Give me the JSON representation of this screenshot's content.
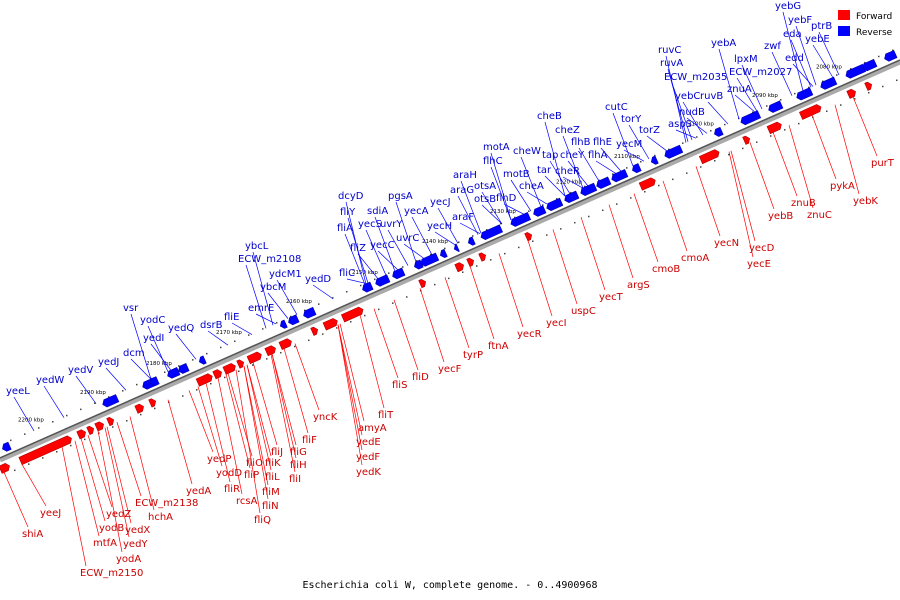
{
  "caption": "Escherichia coli W, complete genome. - 0..4900968",
  "legend": [
    {
      "label": "Forward",
      "color": "#ff0000"
    },
    {
      "label": "Reverse",
      "color": "#0000ff"
    }
  ],
  "ruler_ticks": [
    "2200 kbp",
    "2190 kbp",
    "2180 kbp",
    "2170 kbp",
    "2160 kbp",
    "2150 kbp",
    "2140 kbp",
    "2130 kbp",
    "2120 kbp",
    "2110 kbp",
    "2100 kbp",
    "2090 kbp",
    "2080 kbp"
  ],
  "reverse_genes": [
    "yeeL",
    "yedW",
    "yedV",
    "yedJ",
    "vsr",
    "dcm",
    "yodC",
    "yedI",
    "yedQ",
    "dsrB",
    "fliE",
    "emrE",
    "ybcM",
    "ydcM1",
    "ECW_m2108",
    "ybcL",
    "yedD",
    "fliC",
    "fliZ",
    "fliA",
    "fliY",
    "dcyD",
    "yecC",
    "yecS",
    "sdiA",
    "uvrY",
    "uvrC",
    "pgsA",
    "yecA",
    "yecH",
    "yecJ",
    "araF",
    "otsB",
    "araG",
    "araH",
    "otsA",
    "flhC",
    "motA",
    "motB",
    "flhD",
    "cheW",
    "cheA",
    "tar",
    "tap",
    "cheR",
    "cheB",
    "cheZ",
    "cheY",
    "flhB",
    "flhE",
    "flhA",
    "cutC",
    "torY",
    "yecM",
    "torZ",
    "aspS",
    "nudB",
    "yebC",
    "ruvB",
    "ruvA",
    "ruvC",
    "ECW_m2035",
    "ECW_m2027",
    "lpxM",
    "yebA",
    "znuA",
    "zwf",
    "edd",
    "eda",
    "yebE",
    "yebF",
    "ptrB",
    "yebG"
  ],
  "forward_genes": [
    "shiA",
    "yeeJ",
    "ECW_m2150",
    "yodA",
    "mtfA",
    "yedY",
    "yodB",
    "yedZ",
    "yedX",
    "hchA",
    "ECW_m2138",
    "yedA",
    "yedP",
    "yodD",
    "fliR",
    "rcsA",
    "fliQ",
    "fliP",
    "fliO",
    "fliL",
    "fliN",
    "fliM",
    "fliK",
    "fliJ",
    "fliI",
    "fliH",
    "fliG",
    "fliF",
    "yncK",
    "amyA",
    "fliT",
    "yedE",
    "yedF",
    "yedK",
    "fliS",
    "fliD",
    "yecF",
    "tyrP",
    "ftnA",
    "yecR",
    "yecI",
    "uspC",
    "yecT",
    "argS",
    "cmoB",
    "cmoA",
    "yecN",
    "yecD",
    "yecE",
    "yebB",
    "znuB",
    "znuC",
    "pykA",
    "yebK",
    "purT"
  ]
}
